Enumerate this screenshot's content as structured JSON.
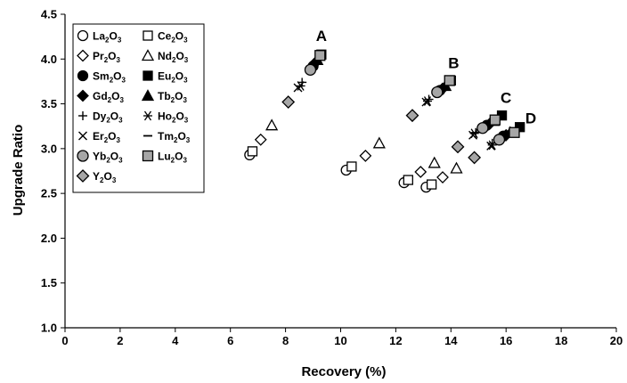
{
  "chart_data": {
    "type": "scatter",
    "xlabel": "Recovery (%)",
    "ylabel": "Upgrade Ratio",
    "xlim": [
      0,
      20
    ],
    "ylim": [
      1.0,
      4.5
    ],
    "x_ticks": [
      "0",
      "2",
      "4",
      "6",
      "8",
      "10",
      "12",
      "14",
      "16",
      "18",
      "20"
    ],
    "y_ticks": [
      "1.0",
      "1.5",
      "2.0",
      "2.5",
      "3.0",
      "3.5",
      "4.0",
      "4.5"
    ],
    "grid": false,
    "legend_position": "top-left",
    "annotations": [
      {
        "text": "A",
        "x": 9.3,
        "y": 4.2
      },
      {
        "text": "B",
        "x": 14.1,
        "y": 3.9
      },
      {
        "text": "C",
        "x": 16.0,
        "y": 3.51
      },
      {
        "text": "D",
        "x": 16.9,
        "y": 3.28
      }
    ],
    "series": [
      {
        "name": "La2O3",
        "label_parts": [
          "La",
          "2",
          "O",
          "3"
        ],
        "marker": "circle-open",
        "points": [
          [
            6.7,
            2.93
          ],
          [
            10.2,
            2.76
          ],
          [
            12.3,
            2.62
          ],
          [
            13.1,
            2.57
          ]
        ]
      },
      {
        "name": "Ce2O3",
        "label_parts": [
          "Ce",
          "2",
          "O",
          "3"
        ],
        "marker": "square-open",
        "points": [
          [
            6.8,
            2.97
          ],
          [
            10.4,
            2.8
          ],
          [
            12.45,
            2.65
          ],
          [
            13.3,
            2.6
          ]
        ]
      },
      {
        "name": "Pr2O3",
        "label_parts": [
          "Pr",
          "2",
          "O",
          "3"
        ],
        "marker": "diamond-open",
        "points": [
          [
            7.1,
            3.1
          ],
          [
            10.9,
            2.92
          ],
          [
            12.9,
            2.74
          ],
          [
            13.7,
            2.68
          ]
        ]
      },
      {
        "name": "Nd2O3",
        "label_parts": [
          "Nd",
          "2",
          "O",
          "3"
        ],
        "marker": "triangle-open",
        "points": [
          [
            7.5,
            3.26
          ],
          [
            11.4,
            3.06
          ],
          [
            13.4,
            2.84
          ],
          [
            14.2,
            2.78
          ]
        ]
      },
      {
        "name": "Sm2O3",
        "label_parts": [
          "Sm",
          "2",
          "O",
          "3"
        ],
        "marker": "circle-filled",
        "points": [
          [
            9.0,
            3.92
          ],
          [
            13.6,
            3.65
          ],
          [
            15.3,
            3.26
          ],
          [
            15.9,
            3.14
          ]
        ]
      },
      {
        "name": "Eu2O3",
        "label_parts": [
          "Eu",
          "2",
          "O",
          "3"
        ],
        "marker": "square-filled",
        "points": [
          [
            9.3,
            4.05
          ],
          [
            14.0,
            3.76
          ],
          [
            15.85,
            3.37
          ],
          [
            16.5,
            3.24
          ]
        ]
      },
      {
        "name": "Gd2O3",
        "label_parts": [
          "Gd",
          "2",
          "O",
          "3"
        ],
        "marker": "diamond-filled",
        "points": [
          [
            9.05,
            3.95
          ],
          [
            13.7,
            3.67
          ],
          [
            15.45,
            3.29
          ],
          [
            16.0,
            3.15
          ]
        ]
      },
      {
        "name": "Tb2O3",
        "label_parts": [
          "Tb",
          "2",
          "O",
          "3"
        ],
        "marker": "triangle-filled",
        "points": [
          [
            9.15,
            3.99
          ],
          [
            13.8,
            3.7
          ],
          [
            15.55,
            3.31
          ],
          [
            16.15,
            3.18
          ]
        ]
      },
      {
        "name": "Dy2O3",
        "label_parts": [
          "Dy",
          "2",
          "O",
          "3"
        ],
        "marker": "plus",
        "points": [
          [
            8.6,
            3.74
          ],
          [
            13.2,
            3.55
          ],
          [
            14.9,
            3.18
          ],
          [
            15.5,
            3.06
          ]
        ]
      },
      {
        "name": "Ho2O3",
        "label_parts": [
          "Ho",
          "2",
          "O",
          "3"
        ],
        "marker": "asterisk",
        "points": [
          [
            8.55,
            3.7
          ],
          [
            13.15,
            3.53
          ],
          [
            14.85,
            3.17
          ],
          [
            15.5,
            3.04
          ]
        ]
      },
      {
        "name": "Er2O3",
        "label_parts": [
          "Er",
          "2",
          "O",
          "3"
        ],
        "marker": "x",
        "points": [
          [
            8.45,
            3.68
          ],
          [
            13.1,
            3.52
          ],
          [
            14.8,
            3.15
          ],
          [
            15.45,
            3.03
          ]
        ]
      },
      {
        "name": "Tm2O3",
        "label_parts": [
          "Tm",
          "2",
          "O",
          "3"
        ],
        "marker": "dash",
        "points": [
          [
            8.9,
            3.85
          ],
          [
            13.5,
            3.6
          ],
          [
            15.2,
            3.22
          ],
          [
            15.8,
            3.1
          ]
        ]
      },
      {
        "name": "Yb2O3",
        "label_parts": [
          "Yb",
          "2",
          "O",
          "3"
        ],
        "marker": "circle-gray",
        "points": [
          [
            8.9,
            3.88
          ],
          [
            13.5,
            3.63
          ],
          [
            15.15,
            3.23
          ],
          [
            15.75,
            3.1
          ]
        ]
      },
      {
        "name": "Lu2O3",
        "label_parts": [
          "Lu",
          "2",
          "O",
          "3"
        ],
        "marker": "square-gray",
        "points": [
          [
            9.25,
            4.04
          ],
          [
            13.95,
            3.76
          ],
          [
            15.6,
            3.32
          ],
          [
            16.3,
            3.18
          ]
        ]
      },
      {
        "name": "Y2O3",
        "label_parts": [
          "Y",
          "2",
          "O",
          "3"
        ],
        "marker": "diamond-gray",
        "points": [
          [
            8.1,
            3.52
          ],
          [
            12.6,
            3.37
          ],
          [
            14.25,
            3.02
          ],
          [
            14.85,
            2.9
          ]
        ]
      }
    ]
  }
}
